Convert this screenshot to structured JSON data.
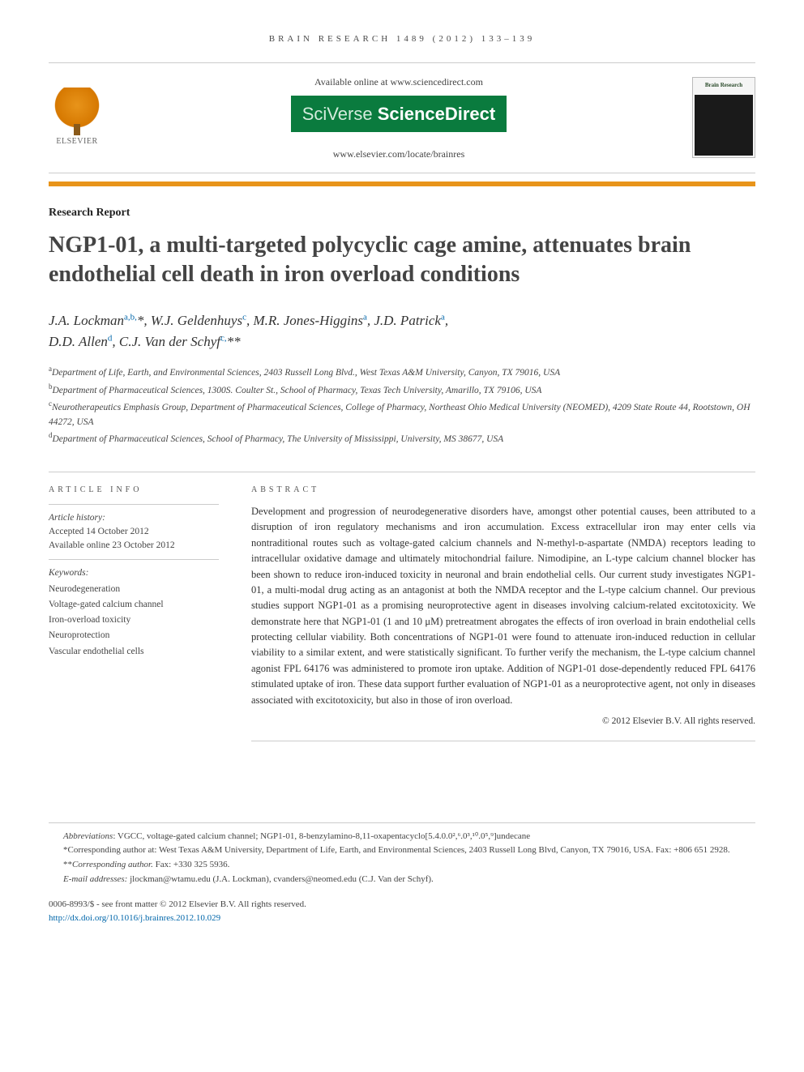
{
  "running_head": "BRAIN RESEARCH 1489 (2012) 133–139",
  "header": {
    "available": "Available online at www.sciencedirect.com",
    "brand_a": "SciVerse",
    "brand_b": "ScienceDirect",
    "journal_url": "www.elsevier.com/locate/brainres",
    "elsevier": "ELSEVIER",
    "cover_title": "Brain Research"
  },
  "article_type": "Research Report",
  "title": "NGP1-01, a multi-targeted polycyclic cage amine, attenuates brain endothelial cell death in iron overload conditions",
  "authors": [
    {
      "name": "J.A. Lockman",
      "sup": "a,b,",
      "sym": "*"
    },
    {
      "name": "W.J. Geldenhuys",
      "sup": "c",
      "sym": ""
    },
    {
      "name": "M.R. Jones-Higgins",
      "sup": "a",
      "sym": ""
    },
    {
      "name": "J.D. Patrick",
      "sup": "a",
      "sym": ""
    },
    {
      "name": "D.D. Allen",
      "sup": "d",
      "sym": ""
    },
    {
      "name": "C.J. Van der Schyf",
      "sup": "c,",
      "sym": "**"
    }
  ],
  "affiliations": [
    {
      "sup": "a",
      "text": "Department of Life, Earth, and Environmental Sciences, 2403 Russell Long Blvd., West Texas A&M University, Canyon, TX 79016, USA"
    },
    {
      "sup": "b",
      "text": "Department of Pharmaceutical Sciences, 1300S. Coulter St., School of Pharmacy, Texas Tech University, Amarillo, TX 79106, USA"
    },
    {
      "sup": "c",
      "text": "Neurotherapeutics Emphasis Group, Department of Pharmaceutical Sciences, College of Pharmacy, Northeast Ohio Medical University (NEOMED), 4209 State Route 44, Rootstown, OH 44272, USA"
    },
    {
      "sup": "d",
      "text": "Department of Pharmaceutical Sciences, School of Pharmacy, The University of Mississippi, University, MS 38677, USA"
    }
  ],
  "info": {
    "head": "ARTICLE INFO",
    "history_label": "Article history:",
    "accepted": "Accepted 14 October 2012",
    "online": "Available online 23 October 2012",
    "keywords_label": "Keywords:",
    "keywords": [
      "Neurodegeneration",
      "Voltage-gated calcium channel",
      "Iron-overload toxicity",
      "Neuroprotection",
      "Vascular endothelial cells"
    ]
  },
  "abstract": {
    "head": "ABSTRACT",
    "text": "Development and progression of neurodegenerative disorders have, amongst other potential causes, been attributed to a disruption of iron regulatory mechanisms and iron accumulation. Excess extracellular iron may enter cells via nontraditional routes such as voltage-gated calcium channels and N-methyl-ᴅ-aspartate (NMDA) receptors leading to intracellular oxidative damage and ultimately mitochondrial failure. Nimodipine, an L-type calcium channel blocker has been shown to reduce iron-induced toxicity in neuronal and brain endothelial cells. Our current study investigates NGP1-01, a multi-modal drug acting as an antagonist at both the NMDA receptor and the L-type calcium channel. Our previous studies support NGP1-01 as a promising neuroprotective agent in diseases involving calcium-related excitotoxicity. We demonstrate here that NGP1-01 (1 and 10 μM) pretreatment abrogates the effects of iron overload in brain endothelial cells protecting cellular viability. Both concentrations of NGP1-01 were found to attenuate iron-induced reduction in cellular viability to a similar extent, and were statistically significant. To further verify the mechanism, the L-type calcium channel agonist FPL 64176 was administered to promote iron uptake. Addition of NGP1-01 dose-dependently reduced FPL 64176 stimulated uptake of iron. These data support further evaluation of NGP1-01 as a neuroprotective agent, not only in diseases associated with excitotoxicity, but also in those of iron overload.",
    "copyright": "© 2012 Elsevier B.V. All rights reserved."
  },
  "footnotes": {
    "abbrev_label": "Abbreviations",
    "abbrev_text": ": VGCC,  voltage-gated calcium channel; NGP1-01,  8-benzylamino-8,11-oxapentacyclo[5.4.0.0²,⁶.0³,¹⁰.0⁵,⁹]undecane",
    "corr1_sym": "*",
    "corr1": "Corresponding author at: West Texas A&M University, Department of Life, Earth, and Environmental Sciences, 2403 Russell Long Blvd, Canyon, TX 79016, USA. Fax: +806 651 2928.",
    "corr2_sym": "**",
    "corr2_label": "Corresponding author.",
    "corr2_rest": " Fax: +330 325 5936.",
    "email_label": "E-mail addresses:",
    "email_text": " jlockman@wtamu.edu (J.A. Lockman), cvanders@neomed.edu (C.J. Van der Schyf)."
  },
  "footer": {
    "line1": "0006-8993/$ - see front matter © 2012 Elsevier B.V. All rights reserved.",
    "doi": "http://dx.doi.org/10.1016/j.brainres.2012.10.029"
  },
  "colors": {
    "orange": "#e8941a",
    "green": "#0a7b3e",
    "link": "#0066aa",
    "rule": "#cccccc",
    "text": "#333333"
  }
}
